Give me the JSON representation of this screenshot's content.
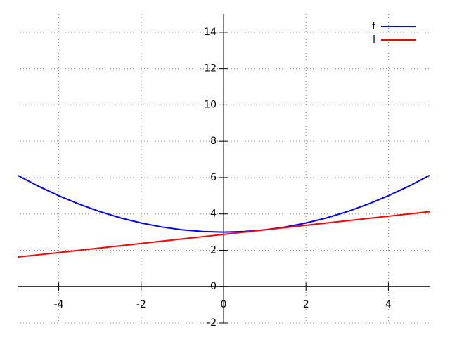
{
  "chart_data": {
    "type": "line",
    "x": [
      -5,
      -4.5,
      -4,
      -3.5,
      -3,
      -2.5,
      -2,
      -1.5,
      -1,
      -0.5,
      0,
      0.5,
      1,
      1.5,
      2,
      2.5,
      3,
      3.5,
      4,
      4.5,
      5
    ],
    "series": [
      {
        "name": "f",
        "color": "#0000ff",
        "values": [
          6.125,
          5.53125,
          5,
          4.53125,
          4.125,
          3.78125,
          3.5,
          3.28125,
          3.125,
          3.03125,
          3,
          3.03125,
          3.125,
          3.28125,
          3.5,
          3.78125,
          4.125,
          4.53125,
          5,
          5.53125,
          6.125
        ]
      },
      {
        "name": "l",
        "color": "#ff0000",
        "values": [
          1.625,
          1.75,
          1.875,
          2,
          2.125,
          2.25,
          2.375,
          2.5,
          2.625,
          2.75,
          2.875,
          3,
          3.125,
          3.25,
          3.375,
          3.5,
          3.625,
          3.75,
          3.875,
          4,
          4.125
        ]
      }
    ],
    "xlim": [
      -5,
      5
    ],
    "ylim": [
      -2,
      15
    ],
    "xticks": [
      -4,
      -2,
      0,
      2,
      4
    ],
    "yticks": [
      -2,
      0,
      2,
      4,
      6,
      8,
      10,
      12,
      14
    ],
    "grid": true,
    "legend": "top-right"
  }
}
